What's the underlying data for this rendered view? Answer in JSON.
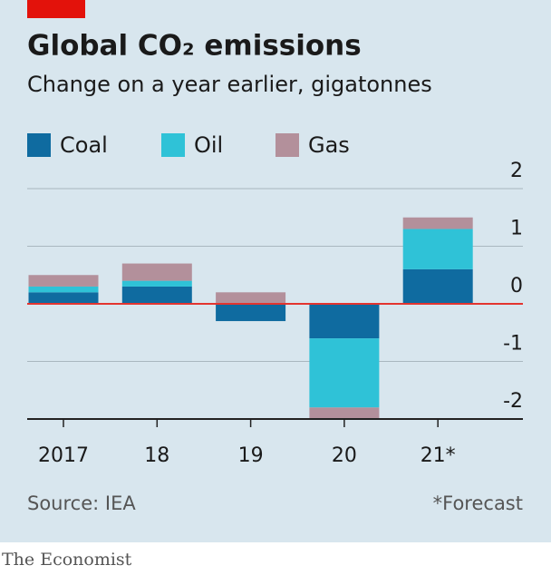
{
  "chart_data": {
    "type": "stacked-bar",
    "title": "Global CO₂ emissions",
    "subtitle": "Change on a year earlier, gigatonnes",
    "categories": [
      "2017",
      "18",
      "19",
      "20",
      "21*"
    ],
    "series": [
      {
        "name": "Coal",
        "color": "#0f6ba0",
        "values": [
          0.2,
          0.3,
          -0.3,
          -0.6,
          0.6
        ]
      },
      {
        "name": "Oil",
        "color": "#2fc2d7",
        "values": [
          0.1,
          0.1,
          0,
          -1.2,
          0.7
        ]
      },
      {
        "name": "Gas",
        "color": "#b3909b",
        "values": [
          0.2,
          0.3,
          0.2,
          -0.2,
          0.2
        ]
      }
    ],
    "ylim": [
      -2,
      2
    ],
    "yticks": [
      -2,
      -1,
      0,
      1,
      2
    ],
    "grid": true,
    "source": "Source: IEA",
    "note": "*Forecast",
    "brand": "The Economist"
  }
}
